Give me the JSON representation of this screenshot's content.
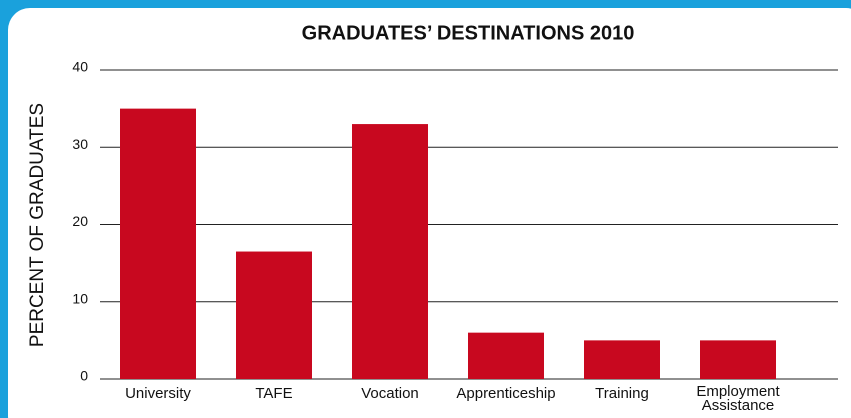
{
  "chart_data": {
    "type": "bar",
    "title": "GRADUATES’ DESTINATIONS 2010",
    "y_label": "PERCENT OF GRADUATES",
    "categories": [
      "University",
      "TAFE",
      "Vocation",
      "Apprenticeship",
      "Training",
      "Employment Assistance"
    ],
    "values": [
      35,
      16.5,
      33,
      6,
      5,
      5
    ],
    "color": "#c8081f",
    "ylim": [
      0,
      40
    ],
    "yticks": [
      0,
      10,
      20,
      30,
      40
    ],
    "grid": true
  }
}
